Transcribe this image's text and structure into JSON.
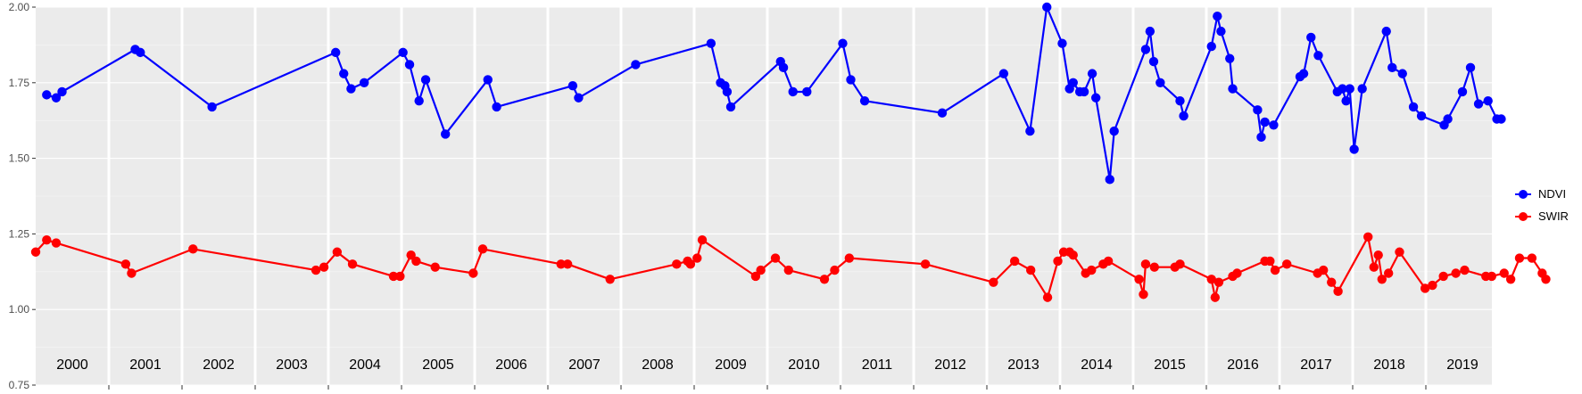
{
  "chart_data": {
    "type": "line",
    "xlim": [
      2000,
      2020
    ],
    "ylim": [
      0.75,
      2.0
    ],
    "yticks": [
      0.75,
      1.0,
      1.25,
      1.5,
      1.75,
      2.0
    ],
    "ytick_labels": [
      "0.75",
      "1.00",
      "1.25",
      "1.50",
      "1.75",
      "2.00"
    ],
    "year_labels": [
      "2000",
      "2001",
      "2002",
      "2003",
      "2004",
      "2005",
      "2006",
      "2007",
      "2008",
      "2009",
      "2010",
      "2011",
      "2012",
      "2013",
      "2014",
      "2015",
      "2016",
      "2017",
      "2018",
      "2019"
    ],
    "grid": true,
    "legend_position": "right",
    "series": [
      {
        "name": "NDVI",
        "color": "#0000FF",
        "points": [
          [
            2000.15,
            1.71
          ],
          [
            2000.28,
            1.7
          ],
          [
            2000.36,
            1.72
          ],
          [
            2001.36,
            1.86
          ],
          [
            2001.43,
            1.85
          ],
          [
            2002.41,
            1.67
          ],
          [
            2004.1,
            1.85
          ],
          [
            2004.21,
            1.78
          ],
          [
            2004.31,
            1.73
          ],
          [
            2004.49,
            1.75
          ],
          [
            2005.02,
            1.85
          ],
          [
            2005.11,
            1.81
          ],
          [
            2005.24,
            1.69
          ],
          [
            2005.33,
            1.76
          ],
          [
            2005.6,
            1.58
          ],
          [
            2006.18,
            1.76
          ],
          [
            2006.3,
            1.67
          ],
          [
            2007.34,
            1.74
          ],
          [
            2007.42,
            1.7
          ],
          [
            2008.2,
            1.81
          ],
          [
            2009.23,
            1.88
          ],
          [
            2009.36,
            1.75
          ],
          [
            2009.42,
            1.74
          ],
          [
            2009.45,
            1.72
          ],
          [
            2009.5,
            1.67
          ],
          [
            2010.18,
            1.82
          ],
          [
            2010.22,
            1.8
          ],
          [
            2010.35,
            1.72
          ],
          [
            2010.54,
            1.72
          ],
          [
            2011.03,
            1.88
          ],
          [
            2011.14,
            1.76
          ],
          [
            2011.33,
            1.69
          ],
          [
            2012.39,
            1.65
          ],
          [
            2013.23,
            1.78
          ],
          [
            2013.59,
            1.59
          ],
          [
            2013.82,
            2.0
          ],
          [
            2014.03,
            1.88
          ],
          [
            2014.13,
            1.73
          ],
          [
            2014.18,
            1.75
          ],
          [
            2014.27,
            1.72
          ],
          [
            2014.33,
            1.72
          ],
          [
            2014.44,
            1.78
          ],
          [
            2014.49,
            1.7
          ],
          [
            2014.68,
            1.43
          ],
          [
            2014.74,
            1.59
          ],
          [
            2015.17,
            1.86
          ],
          [
            2015.23,
            1.92
          ],
          [
            2015.28,
            1.82
          ],
          [
            2015.37,
            1.75
          ],
          [
            2015.64,
            1.69
          ],
          [
            2015.69,
            1.64
          ],
          [
            2016.07,
            1.87
          ],
          [
            2016.15,
            1.97
          ],
          [
            2016.2,
            1.92
          ],
          [
            2016.32,
            1.83
          ],
          [
            2016.36,
            1.73
          ],
          [
            2016.7,
            1.66
          ],
          [
            2016.75,
            1.57
          ],
          [
            2016.8,
            1.62
          ],
          [
            2016.92,
            1.61
          ],
          [
            2017.28,
            1.77
          ],
          [
            2017.33,
            1.78
          ],
          [
            2017.43,
            1.9
          ],
          [
            2017.53,
            1.84
          ],
          [
            2017.79,
            1.72
          ],
          [
            2017.86,
            1.73
          ],
          [
            2017.91,
            1.69
          ],
          [
            2017.96,
            1.73
          ],
          [
            2018.02,
            1.53
          ],
          [
            2018.13,
            1.73
          ],
          [
            2018.46,
            1.92
          ],
          [
            2018.54,
            1.8
          ],
          [
            2018.68,
            1.78
          ],
          [
            2018.83,
            1.67
          ],
          [
            2018.94,
            1.64
          ],
          [
            2019.25,
            1.61
          ],
          [
            2019.3,
            1.63
          ],
          [
            2019.5,
            1.72
          ],
          [
            2019.61,
            1.8
          ],
          [
            2019.72,
            1.68
          ],
          [
            2019.85,
            1.69
          ],
          [
            2019.97,
            1.63
          ],
          [
            2020.03,
            1.63
          ]
        ]
      },
      {
        "name": "SWIR",
        "color": "#FF0000",
        "points": [
          [
            2000.0,
            1.19
          ],
          [
            2000.15,
            1.23
          ],
          [
            2000.28,
            1.22
          ],
          [
            2001.23,
            1.15
          ],
          [
            2001.31,
            1.12
          ],
          [
            2002.15,
            1.2
          ],
          [
            2003.83,
            1.13
          ],
          [
            2003.94,
            1.14
          ],
          [
            2004.12,
            1.19
          ],
          [
            2004.33,
            1.15
          ],
          [
            2004.89,
            1.11
          ],
          [
            2004.98,
            1.11
          ],
          [
            2005.13,
            1.18
          ],
          [
            2005.2,
            1.16
          ],
          [
            2005.46,
            1.14
          ],
          [
            2005.98,
            1.12
          ],
          [
            2006.11,
            1.2
          ],
          [
            2007.18,
            1.15
          ],
          [
            2007.27,
            1.15
          ],
          [
            2007.85,
            1.1
          ],
          [
            2008.76,
            1.15
          ],
          [
            2008.91,
            1.16
          ],
          [
            2008.95,
            1.15
          ],
          [
            2009.04,
            1.17
          ],
          [
            2009.11,
            1.23
          ],
          [
            2009.84,
            1.11
          ],
          [
            2009.91,
            1.13
          ],
          [
            2010.11,
            1.17
          ],
          [
            2010.29,
            1.13
          ],
          [
            2010.78,
            1.1
          ],
          [
            2010.92,
            1.13
          ],
          [
            2011.12,
            1.17
          ],
          [
            2012.16,
            1.15
          ],
          [
            2013.09,
            1.09
          ],
          [
            2013.38,
            1.16
          ],
          [
            2013.6,
            1.13
          ],
          [
            2013.83,
            1.04
          ],
          [
            2013.97,
            1.16
          ],
          [
            2014.05,
            1.19
          ],
          [
            2014.13,
            1.19
          ],
          [
            2014.18,
            1.18
          ],
          [
            2014.35,
            1.12
          ],
          [
            2014.43,
            1.13
          ],
          [
            2014.59,
            1.15
          ],
          [
            2014.66,
            1.16
          ],
          [
            2015.08,
            1.1
          ],
          [
            2015.14,
            1.05
          ],
          [
            2015.17,
            1.15
          ],
          [
            2015.29,
            1.14
          ],
          [
            2015.57,
            1.14
          ],
          [
            2015.64,
            1.15
          ],
          [
            2016.07,
            1.1
          ],
          [
            2016.12,
            1.04
          ],
          [
            2016.17,
            1.09
          ],
          [
            2016.36,
            1.11
          ],
          [
            2016.42,
            1.12
          ],
          [
            2016.8,
            1.16
          ],
          [
            2016.87,
            1.16
          ],
          [
            2016.94,
            1.13
          ],
          [
            2017.1,
            1.15
          ],
          [
            2017.52,
            1.12
          ],
          [
            2017.6,
            1.13
          ],
          [
            2017.71,
            1.09
          ],
          [
            2017.8,
            1.06
          ],
          [
            2018.21,
            1.24
          ],
          [
            2018.29,
            1.14
          ],
          [
            2018.35,
            1.18
          ],
          [
            2018.4,
            1.1
          ],
          [
            2018.49,
            1.12
          ],
          [
            2018.64,
            1.19
          ],
          [
            2018.99,
            1.07
          ],
          [
            2019.09,
            1.08
          ],
          [
            2019.24,
            1.11
          ],
          [
            2019.41,
            1.12
          ],
          [
            2019.53,
            1.13
          ],
          [
            2019.82,
            1.11
          ],
          [
            2019.9,
            1.11
          ],
          [
            2020.07,
            1.12
          ],
          [
            2020.16,
            1.1
          ],
          [
            2020.28,
            1.17
          ],
          [
            2020.45,
            1.17
          ],
          [
            2020.59,
            1.12
          ],
          [
            2020.64,
            1.1
          ]
        ]
      }
    ]
  }
}
